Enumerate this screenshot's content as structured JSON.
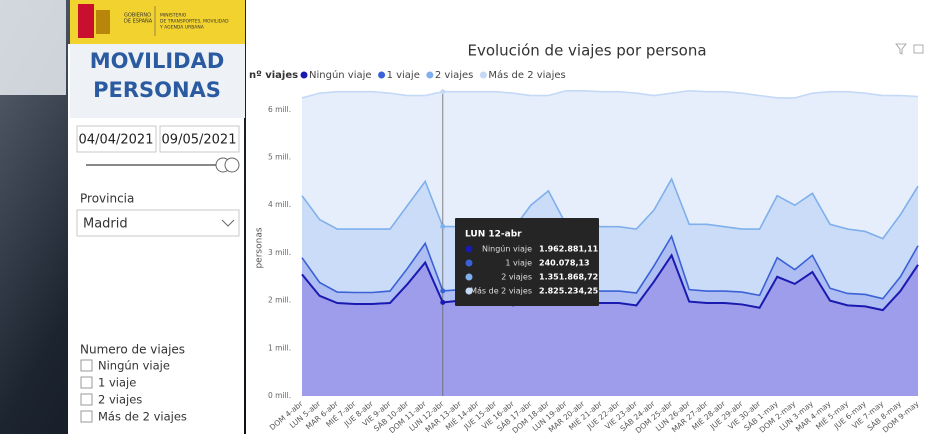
{
  "logo": {
    "left": [
      "GOBIERNO",
      "DE ESPAÑA"
    ],
    "right": [
      "MINISTERIO",
      "DE TRANSPORTES, MOVILIDAD",
      "Y AGENDA URBANA"
    ]
  },
  "panel": {
    "title": [
      "MOVILIDAD",
      "PERSONAS"
    ],
    "date_from": "04/04/2021",
    "date_to": "09/05/2021",
    "province_label": "Provincia",
    "province_value": "Madrid",
    "trips_label": "Numero de viajes"
  },
  "chart_data": {
    "type": "stacked_area",
    "title": "Evolución de viajes por persona",
    "legend_title": "nº viajes",
    "y_label": "personas",
    "categories": [
      "DOM 4-abr",
      "LUN 5-abr",
      "MAR 6-abr",
      "MIÉ 7-abr",
      "JUE 8-abr",
      "VIE 9-abr",
      "SÁB 10-abr",
      "DOM 11-abr",
      "LUN 12-abr",
      "MAR 13-abr",
      "MIÉ 14-abr",
      "JUE 15-abr",
      "VIE 16-abr",
      "SÁB 17-abr",
      "DOM 18-abr",
      "LUN 19-abr",
      "MAR 20-abr",
      "MIÉ 21-abr",
      "JUE 22-abr",
      "VIE 23-abr",
      "SÁB 24-abr",
      "DOM 25-abr",
      "LUN 26-abr",
      "MAR 27-abr",
      "MIÉ 28-abr",
      "JUE 29-abr",
      "VIE 30-abr",
      "SÁB 1-may",
      "DOM 2-may",
      "LUN 3-may",
      "MAR 4-may",
      "MIÉ 5-may",
      "JUE 6-may",
      "VIE 7-may",
      "SÁB 8-may",
      "DOM 9-may"
    ],
    "series": [
      {
        "name": "Ningún viaje",
        "color": "#1a1ab0",
        "fill": "#9d9dec",
        "values": [
          2550000,
          2100000,
          1950000,
          1930000,
          1930000,
          1950000,
          2350000,
          2800000,
          1962881.11,
          2000000,
          2000000,
          1980000,
          1900000,
          2150000,
          2300000,
          1950000,
          1950000,
          1950000,
          1950000,
          1900000,
          2400000,
          2950000,
          1980000,
          1950000,
          1950000,
          1920000,
          1850000,
          2500000,
          2350000,
          2600000,
          2000000,
          1900000,
          1880000,
          1800000,
          2200000,
          2750000
        ]
      },
      {
        "name": "1 viaje",
        "color": "#3a62d6",
        "fill": "#aebdf2",
        "values": [
          350000,
          280000,
          230000,
          240000,
          240000,
          250000,
          330000,
          400000,
          240078.13,
          230000,
          230000,
          240000,
          240000,
          300000,
          350000,
          250000,
          250000,
          250000,
          250000,
          260000,
          330000,
          400000,
          250000,
          250000,
          250000,
          260000,
          260000,
          400000,
          300000,
          350000,
          260000,
          250000,
          250000,
          240000,
          300000,
          400000
        ]
      },
      {
        "name": "2 viajes",
        "color": "#7fb0ec",
        "fill": "#cbdcf8",
        "values": [
          1300000,
          1320000,
          1320000,
          1330000,
          1330000,
          1300000,
          1320000,
          1300000,
          1351868.72,
          1320000,
          1320000,
          1280000,
          1360000,
          1550000,
          1650000,
          1400000,
          1400000,
          1350000,
          1350000,
          1340000,
          1170000,
          1200000,
          1370000,
          1400000,
          1350000,
          1320000,
          1390000,
          1300000,
          1350000,
          1300000,
          1340000,
          1350000,
          1320000,
          1260000,
          1300000,
          1250000
        ]
      },
      {
        "name": "Más de 2 viajes",
        "color": "#c3d9f6",
        "fill": "#e7eefb",
        "values": [
          2050000,
          2650000,
          2880000,
          2880000,
          2880000,
          2850000,
          2300000,
          1800000,
          2825234.25,
          2830000,
          2830000,
          2880000,
          2850000,
          2300000,
          2000000,
          2800000,
          2800000,
          2830000,
          2830000,
          2850000,
          2400000,
          1800000,
          2800000,
          2780000,
          2830000,
          2850000,
          2800000,
          2050000,
          2250000,
          2100000,
          2780000,
          2880000,
          2900000,
          3000000,
          2500000,
          1880000
        ]
      }
    ],
    "ylim": [
      0,
      6500000
    ],
    "yticks": [
      {
        "value": 0,
        "label": "0 mill."
      },
      {
        "value": 1000000,
        "label": "1 mill."
      },
      {
        "value": 2000000,
        "label": "2 mill."
      },
      {
        "value": 3000000,
        "label": "3 mill."
      },
      {
        "value": 4000000,
        "label": "4 mill."
      },
      {
        "value": 5000000,
        "label": "5 mill."
      },
      {
        "value": 6000000,
        "label": "6 mill."
      }
    ],
    "tooltip": {
      "values": [
        "1.962.881,11",
        "240.078,13",
        "1.351.868,72",
        "2.825.234,25"
      ]
    }
  }
}
